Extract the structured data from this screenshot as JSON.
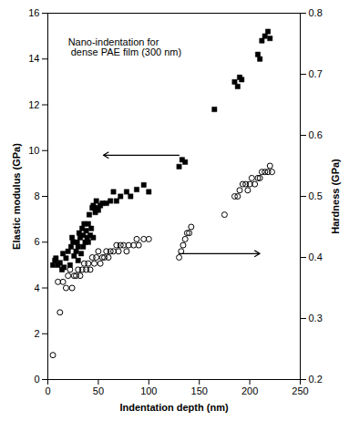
{
  "chart_data": {
    "type": "scatter",
    "title": "Nano-indentation for\n dense PAE film (300 nm)",
    "xlabel": "Indentation depth (nm)",
    "ylabel": "Elastic modulus (GPa)",
    "y2label": "Hardness (GPa)",
    "xlim": [
      0,
      250
    ],
    "ylim": [
      0,
      16
    ],
    "y2lim": [
      0.2,
      0.8
    ],
    "xticks": [
      0,
      50,
      100,
      150,
      200,
      250
    ],
    "yticks": [
      0,
      2,
      4,
      6,
      8,
      10,
      12,
      14,
      16
    ],
    "y2ticks": [
      0.2,
      0.3,
      0.4,
      0.5,
      0.6,
      0.7,
      0.8
    ],
    "grid": false,
    "series": [
      {
        "axis": "y",
        "marker": "square",
        "color": "black",
        "x": [
          5,
          7,
          8,
          10,
          12,
          14,
          15,
          16,
          18,
          20,
          22,
          23,
          24,
          25,
          26,
          28,
          29,
          30,
          30,
          31,
          32,
          33,
          34,
          35,
          35,
          36,
          37,
          38,
          39,
          40,
          40,
          41,
          42,
          43,
          44,
          45,
          45,
          46,
          47,
          48,
          49,
          50,
          52,
          54,
          58,
          62,
          65,
          68,
          72,
          78,
          82,
          88,
          95,
          100,
          130,
          133,
          136,
          165,
          185,
          188,
          190,
          192,
          208,
          210,
          212,
          215,
          218,
          220
        ],
        "values": [
          5.0,
          5.2,
          5.3,
          5.0,
          5.1,
          4.8,
          5.5,
          4.9,
          5.3,
          5.6,
          5.0,
          5.8,
          6.2,
          6.0,
          5.4,
          5.6,
          6.0,
          5.2,
          5.8,
          6.4,
          6.2,
          5.5,
          6.6,
          5.8,
          6.3,
          6.8,
          6.0,
          6.5,
          6.2,
          6.0,
          6.8,
          7.2,
          6.3,
          6.6,
          7.5,
          6.2,
          7.6,
          7.5,
          7.3,
          7.8,
          7.5,
          7.4,
          7.6,
          7.7,
          7.7,
          7.8,
          8.2,
          7.8,
          8.0,
          8.2,
          8.0,
          8.3,
          8.5,
          8.2,
          9.3,
          9.6,
          9.5,
          11.8,
          13.0,
          12.8,
          13.2,
          13.1,
          14.2,
          14.0,
          14.8,
          15.0,
          15.2,
          14.9
        ]
      },
      {
        "axis": "y2",
        "marker": "hollow_circle",
        "color": "black",
        "x": [
          5,
          10,
          12,
          15,
          18,
          20,
          22,
          24,
          26,
          28,
          30,
          32,
          34,
          36,
          38,
          40,
          42,
          44,
          46,
          48,
          50,
          52,
          54,
          56,
          58,
          60,
          62,
          65,
          68,
          70,
          72,
          75,
          78,
          80,
          85,
          88,
          90,
          95,
          100,
          130,
          132,
          134,
          136,
          138,
          140,
          142,
          175,
          185,
          188,
          190,
          193,
          196,
          198,
          200,
          202,
          205,
          208,
          210,
          212,
          215,
          218,
          220,
          222
        ],
        "values": [
          0.24,
          0.36,
          0.31,
          0.36,
          0.35,
          0.37,
          0.38,
          0.35,
          0.37,
          0.37,
          0.38,
          0.37,
          0.38,
          0.39,
          0.38,
          0.39,
          0.38,
          0.4,
          0.39,
          0.4,
          0.41,
          0.39,
          0.4,
          0.4,
          0.41,
          0.4,
          0.41,
          0.41,
          0.42,
          0.41,
          0.42,
          0.42,
          0.41,
          0.42,
          0.42,
          0.43,
          0.42,
          0.43,
          0.43,
          0.4,
          0.41,
          0.42,
          0.43,
          0.44,
          0.44,
          0.45,
          0.47,
          0.5,
          0.5,
          0.51,
          0.52,
          0.52,
          0.51,
          0.52,
          0.53,
          0.52,
          0.53,
          0.53,
          0.54,
          0.54,
          0.54,
          0.55,
          0.54
        ]
      }
    ],
    "annotations": [
      {
        "type": "arrow",
        "axis": "y",
        "x1": 130,
        "x2": 55,
        "y": 9.8,
        "color": "black"
      },
      {
        "type": "arrow",
        "axis": "y",
        "x1": 130,
        "x2": 210,
        "y": 5.5,
        "color": "black"
      }
    ]
  }
}
